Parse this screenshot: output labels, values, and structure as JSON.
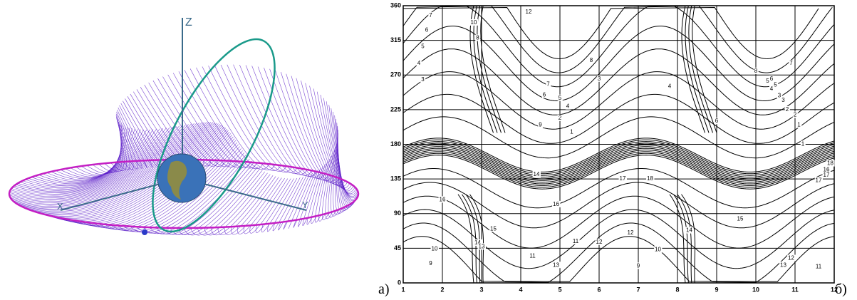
{
  "panel_a": {
    "label": "а)",
    "axes": {
      "z": "Z",
      "x": "X",
      "y": "Y"
    }
  },
  "panel_b": {
    "label": "б)",
    "yticks": [
      0,
      45,
      90,
      135,
      180,
      225,
      270,
      315,
      360
    ],
    "xticks": [
      1,
      2,
      3,
      4,
      5,
      6,
      7,
      8,
      9,
      10,
      11,
      12
    ],
    "contour_labels": [
      "7",
      "6",
      "5",
      "4",
      "3",
      "12",
      "10",
      "8",
      "9",
      "8",
      "7",
      "6",
      "5",
      "4",
      "3",
      "2",
      "1",
      "6",
      "5",
      "4",
      "3",
      "2",
      "1",
      "8",
      "7",
      "6",
      "5",
      "4",
      "3",
      "2",
      "1",
      "16",
      "17",
      "18",
      "16",
      "15",
      "14",
      "13",
      "12",
      "11",
      "10",
      "9",
      "13",
      "12",
      "11",
      "10",
      "9",
      "17",
      "15",
      "14",
      "12",
      "13",
      "11",
      "16",
      "18",
      "17",
      "14"
    ]
  }
}
